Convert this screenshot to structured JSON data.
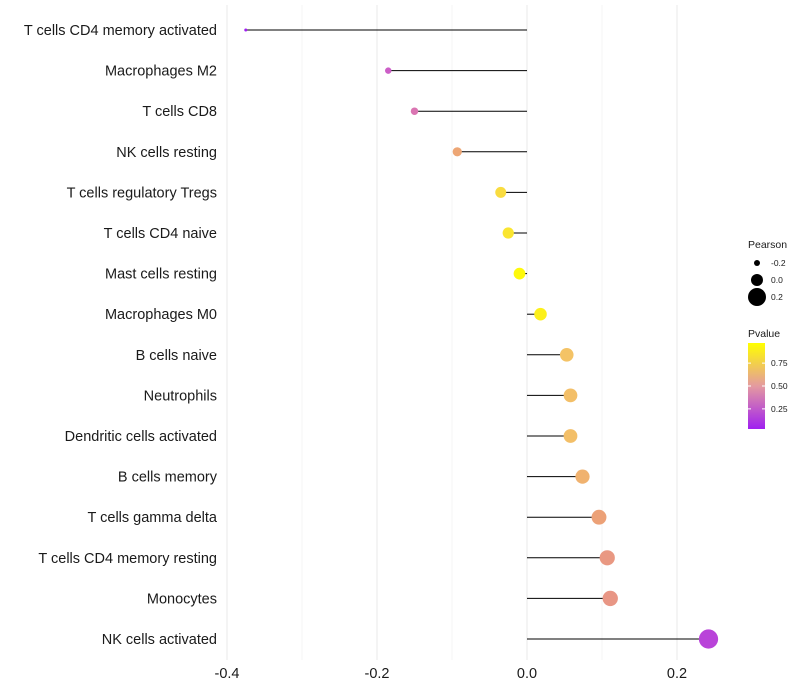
{
  "chart_data": {
    "type": "lollipop",
    "orientation": "horizontal",
    "xlim": [
      -0.4,
      0.26
    ],
    "x_ticks": [
      -0.4,
      -0.2,
      0.0,
      0.2
    ],
    "x_tick_labels": [
      "-0.4",
      "-0.2",
      "0.0",
      "0.2"
    ],
    "baseline": 0,
    "grid": "vertical-only",
    "points": [
      {
        "category": "T cells CD4 memory activated",
        "pearson": -0.375,
        "pvalue": 0.03
      },
      {
        "category": "Macrophages M2",
        "pearson": -0.185,
        "pvalue": 0.3
      },
      {
        "category": "T cells CD8",
        "pearson": -0.15,
        "pvalue": 0.4
      },
      {
        "category": "NK cells resting",
        "pearson": -0.093,
        "pvalue": 0.62
      },
      {
        "category": "T cells regulatory  Tregs ",
        "pearson": -0.035,
        "pvalue": 0.85
      },
      {
        "category": "T cells CD4 naive",
        "pearson": -0.025,
        "pvalue": 0.88
      },
      {
        "category": "Mast cells resting",
        "pearson": -0.01,
        "pvalue": 0.95
      },
      {
        "category": "Macrophages M0",
        "pearson": 0.018,
        "pvalue": 0.92
      },
      {
        "category": "B cells naive",
        "pearson": 0.053,
        "pvalue": 0.76
      },
      {
        "category": "Neutrophils",
        "pearson": 0.058,
        "pvalue": 0.74
      },
      {
        "category": "Dendritic cells activated",
        "pearson": 0.058,
        "pvalue": 0.74
      },
      {
        "category": "B cells memory",
        "pearson": 0.074,
        "pvalue": 0.68
      },
      {
        "category": "T cells gamma delta",
        "pearson": 0.096,
        "pvalue": 0.6
      },
      {
        "category": "T cells CD4 memory resting",
        "pearson": 0.107,
        "pvalue": 0.56
      },
      {
        "category": "Monocytes",
        "pearson": 0.111,
        "pvalue": 0.55
      },
      {
        "category": "NK cells activated",
        "pearson": 0.242,
        "pvalue": 0.18
      }
    ],
    "size_legend": {
      "title": "Pearson",
      "entries": [
        {
          "label": "-0.2",
          "value": -0.2
        },
        {
          "label": "0.0",
          "value": 0.0
        },
        {
          "label": "0.2",
          "value": 0.2
        }
      ]
    },
    "color_legend": {
      "title": "Pvalue",
      "range": [
        0.03,
        0.97
      ],
      "ticks": [
        {
          "label": "0.75",
          "value": 0.75
        },
        {
          "label": "0.50",
          "value": 0.5
        },
        {
          "label": "0.25",
          "value": 0.25
        }
      ],
      "low_color": "#a020f0",
      "high_color": "#ffff00"
    }
  }
}
